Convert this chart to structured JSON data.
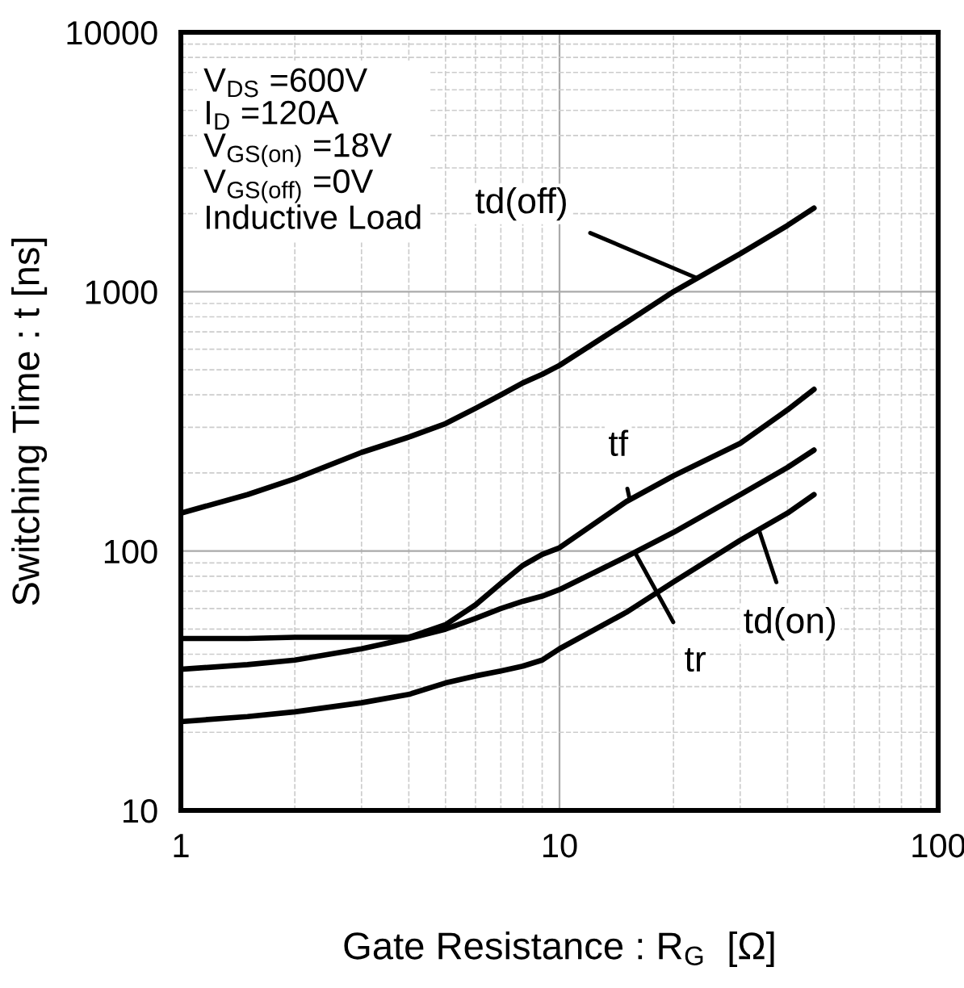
{
  "chart_data": {
    "type": "line",
    "xlabel": "Gate Resistance : R$_{G}$  [Ω]",
    "ylabel": "Switching Time : t [ns]",
    "log": "xy",
    "xlim": [
      1,
      100
    ],
    "ylim": [
      10,
      10000
    ],
    "xticks": [
      1,
      10,
      100
    ],
    "yticks": [
      10,
      100,
      1000,
      10000
    ],
    "grid": true,
    "line_style": "solid",
    "marker": "none",
    "x": [
      1,
      1.5,
      2,
      3,
      4,
      5,
      6,
      7,
      8,
      9,
      10,
      15,
      20,
      30,
      40,
      47
    ],
    "series": [
      {
        "color": "#000000",
        "values": [
          140,
          165,
          190,
          240,
          275,
          310,
          355,
          400,
          445,
          480,
          520,
          760,
          1000,
          1400,
          1800,
          2100
        ]
      },
      {
        "color": "#000000",
        "values": [
          46,
          46,
          46.5,
          46.5,
          46.5,
          52,
          62,
          75,
          88,
          97,
          103,
          155,
          195,
          260,
          350,
          420
        ]
      },
      {
        "color": "#000000",
        "values": [
          35,
          36.5,
          38,
          42,
          46,
          50,
          55,
          60,
          64,
          67,
          71,
          95,
          118,
          165,
          210,
          245
        ]
      },
      {
        "color": "#000000",
        "values": [
          22,
          23,
          24,
          26,
          28,
          31,
          33,
          34.5,
          36,
          38,
          42,
          58,
          76,
          110,
          140,
          165
        ]
      }
    ],
    "annotations": [
      {
        "text": "td(off)",
        "x": 23,
        "y": 1130
      },
      {
        "text": "tf",
        "x": 15.3,
        "y": 160
      },
      {
        "text": "tr",
        "x": 15.8,
        "y": 99
      },
      {
        "text": "td(on)",
        "x": 33.6,
        "y": 121
      },
      "V$_{DS}$ =600V\nI$_{D}$ =120A\nV$_{GS(on)}$ =18V\nV$_{GS(off)}$ =0V\nInductive Load"
    ]
  }
}
